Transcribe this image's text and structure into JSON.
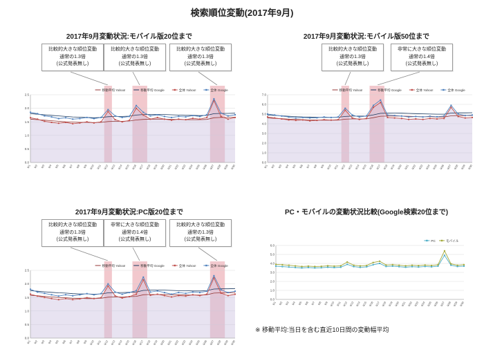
{
  "title": "検索順位変動(2017年9月)",
  "footnote": "※ 移動平均:当日を含む直近10日間の変動幅平均",
  "colors": {
    "band": "#e89aa4",
    "area_fill": "#ccc2e0",
    "yahoo": "#c0504d",
    "google": "#4f81bd",
    "ma_yahoo": "#943634",
    "ma_google": "#17375e",
    "pc": "#4bacc6",
    "mobile": "#a2a838"
  },
  "chart_data": [
    {
      "type": "line",
      "title": "2017年9月変動状況:モバイル版20位まで",
      "x": [
        "9/1",
        "9/2",
        "9/3",
        "9/4",
        "9/5",
        "9/6",
        "9/7",
        "9/8",
        "9/9",
        "9/10",
        "9/11",
        "9/12",
        "9/13",
        "9/14",
        "9/15",
        "9/16",
        "9/17",
        "9/18",
        "9/19",
        "9/20",
        "9/21",
        "9/22",
        "9/23",
        "9/24",
        "9/25",
        "9/26",
        "9/27",
        "9/28",
        "9/29",
        "9/30"
      ],
      "ylim": [
        0,
        2.5
      ],
      "ystep": 0.5,
      "grid": true,
      "legend_position": "top",
      "area_series": 2,
      "highlight_bands": [
        [
          12,
          12
        ],
        [
          16,
          17
        ],
        [
          27,
          28
        ]
      ],
      "series": [
        {
          "name": "移動平均 Yahoo!",
          "color": "#943634",
          "markers": false,
          "values": [
            1.6,
            1.58,
            1.56,
            1.54,
            1.52,
            1.5,
            1.49,
            1.48,
            1.48,
            1.47,
            1.48,
            1.51,
            1.52,
            1.52,
            1.53,
            1.57,
            1.59,
            1.6,
            1.6,
            1.6,
            1.59,
            1.59,
            1.58,
            1.58,
            1.58,
            1.59,
            1.65,
            1.66,
            1.66,
            1.67
          ]
        },
        {
          "name": "移動平均 Google",
          "color": "#17375e",
          "markers": false,
          "values": [
            1.8,
            1.78,
            1.76,
            1.74,
            1.72,
            1.7,
            1.68,
            1.67,
            1.66,
            1.65,
            1.66,
            1.69,
            1.7,
            1.7,
            1.71,
            1.75,
            1.77,
            1.77,
            1.77,
            1.77,
            1.76,
            1.75,
            1.74,
            1.74,
            1.73,
            1.74,
            1.8,
            1.81,
            1.81,
            1.82
          ]
        },
        {
          "name": "全体 Yahoo!",
          "color": "#c0504d",
          "markers": true,
          "values": [
            1.65,
            1.6,
            1.52,
            1.48,
            1.45,
            1.48,
            1.43,
            1.46,
            1.5,
            1.46,
            1.5,
            1.88,
            1.58,
            1.5,
            1.55,
            2.0,
            1.75,
            1.6,
            1.66,
            1.6,
            1.56,
            1.6,
            1.58,
            1.63,
            1.6,
            1.66,
            2.28,
            1.7,
            1.6,
            1.66
          ]
        },
        {
          "name": "全体 Google",
          "color": "#4f81bd",
          "markers": true,
          "values": [
            1.85,
            1.8,
            1.72,
            1.68,
            1.62,
            1.65,
            1.6,
            1.62,
            1.66,
            1.62,
            1.66,
            1.95,
            1.72,
            1.66,
            1.7,
            2.1,
            1.85,
            1.72,
            1.76,
            1.7,
            1.66,
            1.7,
            1.68,
            1.73,
            1.7,
            1.76,
            2.35,
            1.82,
            1.72,
            1.76
          ]
        }
      ],
      "annotations": [
        {
          "text": "比較的大きな順位変動\n通常の1.3倍\n(公式発表無し)",
          "target": "9/12"
        },
        {
          "text": "比較的大きな順位変動\n通常の1.3倍\n(公式発表無し)",
          "target": "9/16"
        },
        {
          "text": "比較的大きな順位変動\n通常の1.3倍\n(公式発表無し)",
          "target": "9/27"
        }
      ]
    },
    {
      "type": "line",
      "title": "2017年9月変動状況:モバイル版50位まで",
      "x": [
        "9/1",
        "9/2",
        "9/3",
        "9/4",
        "9/5",
        "9/6",
        "9/7",
        "9/8",
        "9/9",
        "9/10",
        "9/11",
        "9/12",
        "9/13",
        "9/14",
        "9/15",
        "9/16",
        "9/17",
        "9/18",
        "9/19",
        "9/20",
        "9/21",
        "9/22",
        "9/23",
        "9/24",
        "9/25",
        "9/26",
        "9/27",
        "9/28",
        "9/29",
        "9/30"
      ],
      "ylim": [
        0,
        7
      ],
      "ystep": 1,
      "grid": true,
      "legend_position": "top",
      "area_series": 2,
      "highlight_bands": [
        [
          12,
          12
        ],
        [
          16,
          17
        ]
      ],
      "series": [
        {
          "name": "移動平均 Yahoo!",
          "color": "#943634",
          "markers": false,
          "values": [
            4.6,
            4.56,
            4.52,
            4.48,
            4.45,
            4.42,
            4.4,
            4.38,
            4.37,
            4.37,
            4.38,
            4.47,
            4.5,
            4.5,
            4.51,
            4.63,
            4.78,
            4.79,
            4.8,
            4.79,
            4.77,
            4.75,
            4.73,
            4.72,
            4.7,
            4.7,
            4.82,
            4.84,
            4.84,
            4.85
          ]
        },
        {
          "name": "移動平均 Google",
          "color": "#17375e",
          "markers": false,
          "values": [
            4.9,
            4.86,
            4.82,
            4.78,
            4.74,
            4.71,
            4.69,
            4.67,
            4.66,
            4.66,
            4.67,
            4.76,
            4.79,
            4.79,
            4.8,
            4.92,
            5.08,
            5.09,
            5.1,
            5.09,
            5.07,
            5.05,
            5.03,
            5.01,
            4.99,
            4.99,
            5.11,
            5.13,
            5.13,
            5.14
          ]
        },
        {
          "name": "全体 Yahoo!",
          "color": "#c0504d",
          "markers": true,
          "values": [
            4.7,
            4.6,
            4.5,
            4.4,
            4.35,
            4.4,
            4.3,
            4.35,
            4.42,
            4.38,
            4.42,
            5.4,
            4.6,
            4.45,
            4.55,
            5.7,
            6.2,
            4.65,
            4.6,
            4.55,
            4.45,
            4.5,
            4.45,
            4.55,
            4.5,
            4.55,
            5.7,
            4.75,
            4.6,
            4.65
          ]
        },
        {
          "name": "全体 Google",
          "color": "#4f81bd",
          "markers": true,
          "values": [
            5.0,
            4.9,
            4.8,
            4.7,
            4.6,
            4.65,
            4.6,
            4.62,
            4.7,
            4.65,
            4.7,
            5.6,
            4.9,
            4.7,
            4.8,
            5.9,
            6.45,
            4.9,
            4.85,
            4.8,
            4.7,
            4.75,
            4.7,
            4.78,
            4.72,
            4.8,
            5.9,
            5.0,
            4.85,
            4.9
          ]
        }
      ],
      "annotations": [
        {
          "text": "比較的大きな順位変動\n通常の1.3倍\n(公式発表無し)",
          "target": "9/12"
        },
        {
          "text": "非常に大きな順位変動\n通常の1.4倍\n(公式発表無し)",
          "target": "9/16"
        }
      ]
    },
    {
      "type": "line",
      "title": "2017年9月変動状況:PC版20位まで",
      "x": [
        "9/1",
        "9/2",
        "9/3",
        "9/4",
        "9/5",
        "9/6",
        "9/7",
        "9/8",
        "9/9",
        "9/10",
        "9/11",
        "9/12",
        "9/13",
        "9/14",
        "9/15",
        "9/16",
        "9/17",
        "9/18",
        "9/19",
        "9/20",
        "9/21",
        "9/22",
        "9/23",
        "9/24",
        "9/25",
        "9/26",
        "9/27",
        "9/28",
        "9/29",
        "9/30"
      ],
      "ylim": [
        0,
        2.5
      ],
      "ystep": 0.5,
      "grid": true,
      "legend_position": "top",
      "area_series": 2,
      "highlight_bands": [
        [
          12,
          12
        ],
        [
          16,
          17
        ],
        [
          27,
          28
        ]
      ],
      "series": [
        {
          "name": "移動平均 Yahoo!",
          "color": "#943634",
          "markers": false,
          "values": [
            1.58,
            1.56,
            1.54,
            1.52,
            1.5,
            1.49,
            1.47,
            1.47,
            1.46,
            1.46,
            1.47,
            1.51,
            1.52,
            1.52,
            1.53,
            1.54,
            1.6,
            1.61,
            1.61,
            1.61,
            1.6,
            1.6,
            1.59,
            1.59,
            1.59,
            1.6,
            1.66,
            1.67,
            1.67,
            1.68
          ]
        },
        {
          "name": "移動平均 Google",
          "color": "#17375e",
          "markers": false,
          "values": [
            1.75,
            1.73,
            1.71,
            1.69,
            1.67,
            1.66,
            1.64,
            1.63,
            1.63,
            1.62,
            1.63,
            1.67,
            1.68,
            1.68,
            1.69,
            1.7,
            1.76,
            1.77,
            1.77,
            1.77,
            1.76,
            1.75,
            1.75,
            1.74,
            1.74,
            1.75,
            1.81,
            1.82,
            1.82,
            1.83
          ]
        },
        {
          "name": "全体 Yahoo!",
          "color": "#c0504d",
          "markers": true,
          "values": [
            1.62,
            1.55,
            1.5,
            1.46,
            1.42,
            1.46,
            1.42,
            1.45,
            1.49,
            1.46,
            1.49,
            1.92,
            1.56,
            1.48,
            1.53,
            1.62,
            2.15,
            1.58,
            1.62,
            1.57,
            1.52,
            1.57,
            1.55,
            1.6,
            1.57,
            1.62,
            2.22,
            1.66,
            1.57,
            1.62
          ]
        },
        {
          "name": "全体 Google",
          "color": "#4f81bd",
          "markers": true,
          "values": [
            1.8,
            1.7,
            1.65,
            1.6,
            1.55,
            1.6,
            1.56,
            1.6,
            1.64,
            1.6,
            1.64,
            2.0,
            1.7,
            1.62,
            1.68,
            1.75,
            2.25,
            1.7,
            1.74,
            1.68,
            1.62,
            1.68,
            1.65,
            1.7,
            1.68,
            1.73,
            2.3,
            1.78,
            1.68,
            1.73
          ]
        }
      ],
      "annotations": [
        {
          "text": "比較的大きな順位変動\n通常の1.3倍\n(公式発表無し)",
          "target": "9/12"
        },
        {
          "text": "非常に大きな順位変動\n通常の1.4倍\n(公式発表無し)",
          "target": "9/16"
        },
        {
          "text": "比較的大きな順位変動\n通常の1.3倍\n(公式発表無し)",
          "target": "9/27"
        }
      ]
    },
    {
      "type": "line",
      "title": "PC・モバイルの変動状況比較(Google検索20位まで)",
      "x": [
        "9/1",
        "9/2",
        "9/3",
        "9/4",
        "9/5",
        "9/6",
        "9/7",
        "9/8",
        "9/9",
        "9/10",
        "9/11",
        "9/12",
        "9/13",
        "9/14",
        "9/15",
        "9/16",
        "9/17",
        "9/18",
        "9/19",
        "9/20",
        "9/21",
        "9/22",
        "9/23",
        "9/24",
        "9/25",
        "9/26",
        "9/27",
        "9/28",
        "9/29",
        "9/30"
      ],
      "ylim": [
        0,
        6
      ],
      "ystep": 1,
      "grid": true,
      "legend_position": "top",
      "area_series": -1,
      "highlight_bands": [],
      "series": [
        {
          "name": "PC",
          "color": "#4bacc6",
          "markers": true,
          "values": [
            3.7,
            3.65,
            3.6,
            3.55,
            3.5,
            3.55,
            3.5,
            3.52,
            3.58,
            3.54,
            3.58,
            3.9,
            3.65,
            3.56,
            3.62,
            3.85,
            4.0,
            3.66,
            3.7,
            3.64,
            3.58,
            3.64,
            3.6,
            3.66,
            3.62,
            3.7,
            4.9,
            3.8,
            3.66,
            3.7
          ]
        },
        {
          "name": "モバイル",
          "color": "#a2a838",
          "markers": true,
          "values": [
            3.9,
            3.85,
            3.8,
            3.72,
            3.66,
            3.7,
            3.66,
            3.68,
            3.74,
            3.7,
            3.74,
            4.15,
            3.8,
            3.72,
            3.78,
            4.1,
            4.25,
            3.82,
            3.86,
            3.8,
            3.74,
            3.8,
            3.76,
            3.82,
            3.78,
            3.86,
            5.4,
            3.95,
            3.8,
            3.86
          ]
        }
      ],
      "annotations": []
    }
  ]
}
